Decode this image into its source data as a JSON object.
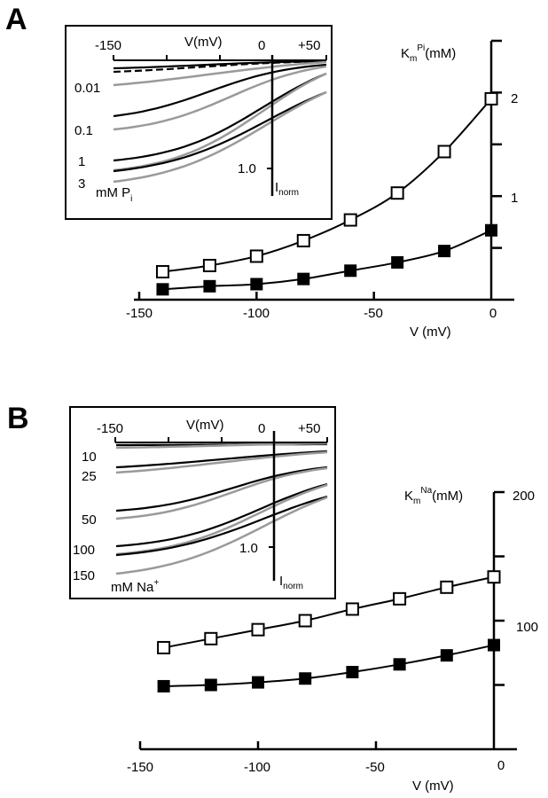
{
  "chart_data": [
    {
      "panel": "A",
      "type": "line",
      "ylabel": "K_m^Pi (mM)",
      "ylabel_main": "K",
      "ylabel_sub": "m",
      "ylabel_sup": "Pi",
      "ylabel_unit": "(mM)",
      "xlabel": "V (mV)",
      "xlim": [
        -150,
        0
      ],
      "ylim": [
        0,
        2.5
      ],
      "xticks": [
        -150,
        -100,
        -50,
        0
      ],
      "xtick_labels": [
        "-150",
        "-100",
        "-50",
        "0"
      ],
      "yticks": [
        0.5,
        1,
        1.5,
        2,
        2.5
      ],
      "ytick_labels": [
        "",
        "1",
        "",
        "2",
        ""
      ],
      "grid": false,
      "x": [
        -140,
        -120,
        -100,
        -80,
        -60,
        -40,
        -20,
        0
      ],
      "series": [
        {
          "name": "open squares",
          "marker": "open-square",
          "values": [
            0.27,
            0.33,
            0.42,
            0.57,
            0.77,
            1.03,
            1.43,
            1.94
          ]
        },
        {
          "name": "filled squares",
          "marker": "filled-square",
          "values": [
            0.1,
            0.13,
            0.15,
            0.2,
            0.28,
            0.36,
            0.47,
            0.67
          ]
        }
      ],
      "inset": {
        "xlabel": "V(mV)",
        "xtick_labels": [
          "-150",
          "0",
          "+50"
        ],
        "ytick_label": "1.0",
        "ylabel_main": "I",
        "ylabel_sub": "norm",
        "curve_labels": [
          "0.01",
          "0.1",
          "1",
          "3"
        ],
        "unit_label_main": "mM P",
        "unit_label_sub": "i"
      }
    },
    {
      "panel": "B",
      "type": "line",
      "ylabel": "K_m^Na (mM)",
      "ylabel_main": "K",
      "ylabel_sub": "m",
      "ylabel_sup": "Na",
      "ylabel_unit": "(mM)",
      "xlabel": "V (mV)",
      "xlim": [
        -150,
        0
      ],
      "ylim": [
        0,
        200
      ],
      "xticks": [
        -150,
        -100,
        -50,
        0
      ],
      "xtick_labels": [
        "-150",
        "-100",
        "-50",
        "0"
      ],
      "yticks": [
        50,
        100,
        150,
        200
      ],
      "ytick_labels": [
        "",
        "100",
        "",
        "200"
      ],
      "grid": false,
      "x": [
        -140,
        -120,
        -100,
        -80,
        -60,
        -40,
        -20,
        0
      ],
      "series": [
        {
          "name": "open squares",
          "marker": "open-square",
          "values": [
            79,
            86,
            93,
            100,
            109,
            117,
            126,
            134
          ]
        },
        {
          "name": "filled squares",
          "marker": "filled-square",
          "values": [
            49,
            50,
            52,
            55,
            60,
            66,
            73,
            81
          ]
        }
      ],
      "inset": {
        "xlabel": "V(mV)",
        "xtick_labels": [
          "-150",
          "0",
          "+50"
        ],
        "ytick_label": "1.0",
        "ylabel_main": "I",
        "ylabel_sub": "norm",
        "curve_labels": [
          "10",
          "25",
          "50",
          "100",
          "150"
        ],
        "unit_label_main": "mM Na",
        "unit_label_sup": "+"
      }
    }
  ],
  "panels": {
    "a_label": "A",
    "b_label": "B"
  }
}
